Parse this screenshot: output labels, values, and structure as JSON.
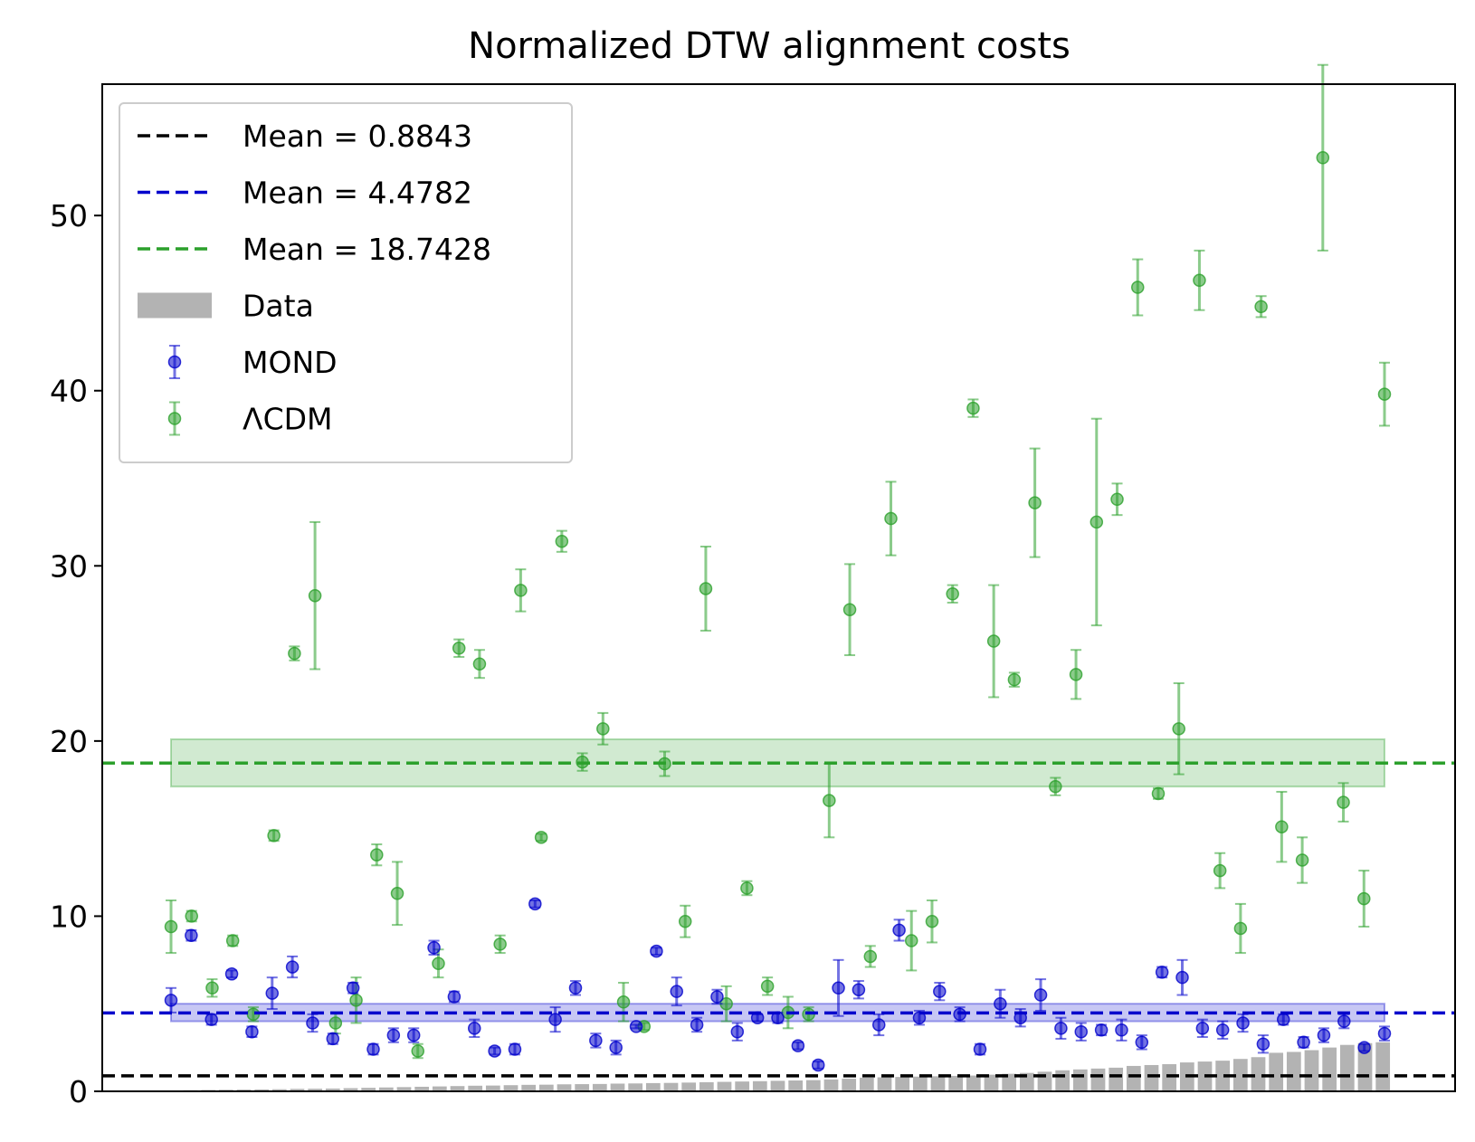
{
  "chart_data": {
    "type": "scatter",
    "title": "Normalized DTW alignment costs",
    "xlabel": "",
    "ylabel": "",
    "ylim": [
      0,
      57.5
    ],
    "yticks": [
      0,
      10,
      20,
      30,
      40,
      50
    ],
    "xticks": [],
    "grid": false,
    "legend_position": "top-left",
    "colors": {
      "data": "#b3b3b3",
      "mond": "#0000cc",
      "lcdm": "#2ca02c",
      "mean_data": "#000000"
    },
    "legend": [
      {
        "key": "mean_data",
        "kind": "dashed-line",
        "color": "#000000",
        "label": "Mean = 0.8843"
      },
      {
        "key": "mean_mond",
        "kind": "dashed-line",
        "color": "#0000cc",
        "label": "Mean = 4.4782"
      },
      {
        "key": "mean_lcdm",
        "kind": "dashed-line",
        "color": "#2ca02c",
        "label": "Mean = 18.7428"
      },
      {
        "key": "data",
        "kind": "patch",
        "color": "#b3b3b3",
        "label": "Data"
      },
      {
        "key": "mond",
        "kind": "errorbar",
        "color": "#0000cc",
        "label": "MOND"
      },
      {
        "key": "lcdm",
        "kind": "errorbar",
        "color": "#2ca02c",
        "label": "ΛCDM"
      }
    ],
    "means": {
      "data": 0.8843,
      "mond": 4.4782,
      "lcdm": 18.7428
    },
    "bands": {
      "mond": {
        "low": 4.0,
        "high": 5.0
      },
      "lcdm": {
        "low": 17.4,
        "high": 20.1
      }
    },
    "data_bars": [
      0.05,
      0.06,
      0.08,
      0.09,
      0.1,
      0.11,
      0.12,
      0.14,
      0.15,
      0.16,
      0.18,
      0.2,
      0.22,
      0.24,
      0.26,
      0.28,
      0.3,
      0.32,
      0.33,
      0.35,
      0.37,
      0.38,
      0.4,
      0.41,
      0.42,
      0.44,
      0.45,
      0.47,
      0.48,
      0.5,
      0.52,
      0.54,
      0.56,
      0.58,
      0.6,
      0.62,
      0.64,
      0.68,
      0.72,
      0.78,
      0.8,
      0.82,
      0.84,
      0.86,
      0.88,
      0.9,
      0.95,
      1.0,
      1.05,
      1.12,
      1.2,
      1.25,
      1.3,
      1.35,
      1.45,
      1.5,
      1.55,
      1.65,
      1.7,
      1.75,
      1.85,
      1.95,
      2.2,
      2.25,
      2.35,
      2.5,
      2.65,
      2.75,
      2.8
    ],
    "mond": [
      {
        "y": 5.2,
        "err": 0.7
      },
      {
        "y": 8.9,
        "err": 0.3
      },
      {
        "y": 4.1,
        "err": 0.3
      },
      {
        "y": 6.7,
        "err": 0.2
      },
      {
        "y": 3.4,
        "err": 0.3
      },
      {
        "y": 5.6,
        "err": 0.9
      },
      {
        "y": 7.1,
        "err": 0.6
      },
      {
        "y": 3.9,
        "err": 0.5
      },
      {
        "y": 3.0,
        "err": 0.3
      },
      {
        "y": 5.9,
        "err": 0.3
      },
      {
        "y": 2.4,
        "err": 0.3
      },
      {
        "y": 3.2,
        "err": 0.4
      },
      {
        "y": 3.2,
        "err": 0.4
      },
      {
        "y": 8.2,
        "err": 0.4
      },
      {
        "y": 5.4,
        "err": 0.3
      },
      {
        "y": 3.6,
        "err": 0.5
      },
      {
        "y": 2.3,
        "err": 0.2
      },
      {
        "y": 2.4,
        "err": 0.3
      },
      {
        "y": 10.7,
        "err": 0.2
      },
      {
        "y": 4.1,
        "err": 0.7
      },
      {
        "y": 5.9,
        "err": 0.4
      },
      {
        "y": 2.9,
        "err": 0.4
      },
      {
        "y": 2.5,
        "err": 0.4
      },
      {
        "y": 3.7,
        "err": 0.1
      },
      {
        "y": 8.0,
        "err": 0.2
      },
      {
        "y": 5.7,
        "err": 0.8
      },
      {
        "y": 3.8,
        "err": 0.4
      },
      {
        "y": 5.4,
        "err": 0.4
      },
      {
        "y": 3.4,
        "err": 0.5
      },
      {
        "y": 4.2,
        "err": 0.2
      },
      {
        "y": 4.2,
        "err": 0.3
      },
      {
        "y": 2.6,
        "err": 0.2
      },
      {
        "y": 1.5,
        "err": 0.2
      },
      {
        "y": 5.9,
        "err": 1.6
      },
      {
        "y": 5.8,
        "err": 0.5
      },
      {
        "y": 3.8,
        "err": 0.6
      },
      {
        "y": 9.2,
        "err": 0.6
      },
      {
        "y": 4.2,
        "err": 0.4
      },
      {
        "y": 5.7,
        "err": 0.5
      },
      {
        "y": 4.4,
        "err": 0.4
      },
      {
        "y": 2.4,
        "err": 0.3
      },
      {
        "y": 5.0,
        "err": 0.8
      },
      {
        "y": 4.2,
        "err": 0.5
      },
      {
        "y": 5.5,
        "err": 0.9
      },
      {
        "y": 3.6,
        "err": 0.6
      },
      {
        "y": 3.4,
        "err": 0.5
      },
      {
        "y": 3.5,
        "err": 0.3
      },
      {
        "y": 3.5,
        "err": 0.6
      },
      {
        "y": 2.8,
        "err": 0.4
      },
      {
        "y": 6.8,
        "err": 0.3
      },
      {
        "y": 6.5,
        "err": 1.0
      },
      {
        "y": 3.6,
        "err": 0.5
      },
      {
        "y": 3.5,
        "err": 0.5
      },
      {
        "y": 3.9,
        "err": 0.5
      },
      {
        "y": 2.7,
        "err": 0.5
      },
      {
        "y": 4.1,
        "err": 0.3
      },
      {
        "y": 2.8,
        "err": 0.3
      },
      {
        "y": 3.2,
        "err": 0.4
      },
      {
        "y": 4.0,
        "err": 0.4
      },
      {
        "y": 2.5,
        "err": 0.2
      },
      {
        "y": 3.3,
        "err": 0.4
      }
    ],
    "lcdm": [
      {
        "y": 9.4,
        "err": 1.5
      },
      {
        "y": 10.0,
        "err": 0.3
      },
      {
        "y": 5.9,
        "err": 0.5
      },
      {
        "y": 8.6,
        "err": 0.3
      },
      {
        "y": 4.4,
        "err": 0.4
      },
      {
        "y": 14.6,
        "err": 0.3
      },
      {
        "y": 25.0,
        "err": 0.4
      },
      {
        "y": 28.3,
        "err": 4.2
      },
      {
        "y": 3.9,
        "err": 0.6
      },
      {
        "y": 5.2,
        "err": 1.3
      },
      {
        "y": 13.5,
        "err": 0.6
      },
      {
        "y": 11.3,
        "err": 1.8
      },
      {
        "y": 2.3,
        "err": 0.4
      },
      {
        "y": 7.3,
        "err": 0.8
      },
      {
        "y": 25.3,
        "err": 0.5
      },
      {
        "y": 24.4,
        "err": 0.8
      },
      {
        "y": 8.4,
        "err": 0.5
      },
      {
        "y": 28.6,
        "err": 1.2
      },
      {
        "y": 14.5,
        "err": 0.2
      },
      {
        "y": 31.4,
        "err": 0.6
      },
      {
        "y": 18.8,
        "err": 0.5
      },
      {
        "y": 20.7,
        "err": 0.9
      },
      {
        "y": 5.1,
        "err": 1.1
      },
      {
        "y": 3.7,
        "err": 0.2
      },
      {
        "y": 18.7,
        "err": 0.7
      },
      {
        "y": 9.7,
        "err": 0.9
      },
      {
        "y": 28.7,
        "err": 2.4
      },
      {
        "y": 5.0,
        "err": 1.0
      },
      {
        "y": 11.6,
        "err": 0.4
      },
      {
        "y": 6.0,
        "err": 0.5
      },
      {
        "y": 4.5,
        "err": 0.9
      },
      {
        "y": 4.4,
        "err": 0.4
      },
      {
        "y": 16.6,
        "err": 2.1
      },
      {
        "y": 27.5,
        "err": 2.6
      },
      {
        "y": 7.7,
        "err": 0.6
      },
      {
        "y": 32.7,
        "err": 2.1
      },
      {
        "y": 8.6,
        "err": 1.7
      },
      {
        "y": 9.7,
        "err": 1.2
      },
      {
        "y": 28.4,
        "err": 0.5
      },
      {
        "y": 39.0,
        "err": 0.5
      },
      {
        "y": 25.7,
        "err": 3.2
      },
      {
        "y": 23.5,
        "err": 0.4
      },
      {
        "y": 33.6,
        "err": 3.1
      },
      {
        "y": 17.4,
        "err": 0.5
      },
      {
        "y": 23.8,
        "err": 1.4
      },
      {
        "y": 32.5,
        "err": 5.9
      },
      {
        "y": 33.8,
        "err": 0.9
      },
      {
        "y": 45.9,
        "err": 1.6
      },
      {
        "y": 17.0,
        "err": 0.3
      },
      {
        "y": 20.7,
        "err": 2.6
      },
      {
        "y": 46.3,
        "err": 1.7
      },
      {
        "y": 12.6,
        "err": 1.0
      },
      {
        "y": 9.3,
        "err": 1.4
      },
      {
        "y": 44.8,
        "err": 0.6
      },
      {
        "y": 15.1,
        "err": 2.0
      },
      {
        "y": 13.2,
        "err": 1.3
      },
      {
        "y": 53.3,
        "err": 5.3
      },
      {
        "y": 16.5,
        "err": 1.1
      },
      {
        "y": 11.0,
        "err": 1.6
      },
      {
        "y": 39.8,
        "err": 1.8
      }
    ]
  }
}
